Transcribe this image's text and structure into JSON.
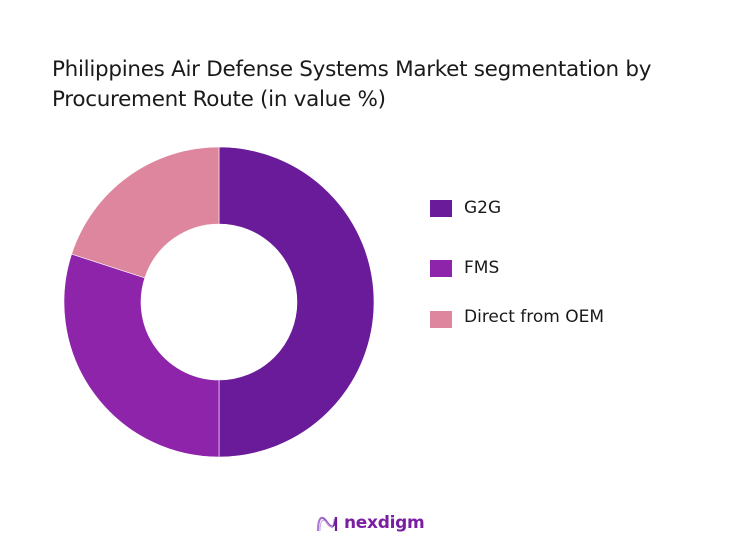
{
  "title": "Philippines Air Defense Systems Market segmentation by Procurement Route (in value %)",
  "chart_data": {
    "type": "pie",
    "variant": "donut",
    "title": "Philippines Air Defense Systems Market segmentation by Procurement Route (in value %)",
    "categories": [
      "G2G",
      "FMS",
      "Direct from OEM"
    ],
    "values": [
      50,
      30,
      20
    ],
    "colors": [
      "#6a1b9a",
      "#8e24aa",
      "#dd869e"
    ],
    "start_angle": "top, clockwise",
    "legend_position": "right",
    "data_labels": false
  },
  "legend": {
    "items": [
      {
        "label": "G2G",
        "color": "#6a1b9a"
      },
      {
        "label": "FMS",
        "color": "#8e24aa"
      },
      {
        "label": "Direct from OEM",
        "color": "#dd869e"
      }
    ]
  },
  "footer": {
    "brand": "nexdigm",
    "logo_icon": "nexdigm-wave-logo"
  }
}
